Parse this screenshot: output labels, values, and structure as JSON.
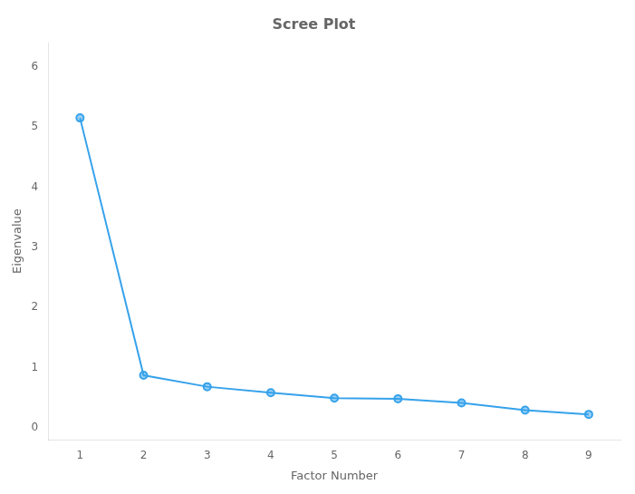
{
  "chart_data": {
    "type": "line",
    "title": "Scree Plot",
    "xlabel": "Factor Number",
    "ylabel": "Eigenvalue",
    "x": [
      1,
      2,
      3,
      4,
      5,
      6,
      7,
      8,
      9
    ],
    "values": [
      5.15,
      0.87,
      0.68,
      0.58,
      0.49,
      0.48,
      0.41,
      0.29,
      0.22
    ],
    "xlim": [
      0.5,
      9.5
    ],
    "xticks": [
      1,
      2,
      3,
      4,
      5,
      6,
      7,
      8,
      9
    ],
    "ylim": [
      -0.2,
      6.4
    ],
    "yticks": [
      0,
      1,
      2,
      3,
      4,
      5,
      6
    ],
    "marker": "circle",
    "grid": false
  }
}
